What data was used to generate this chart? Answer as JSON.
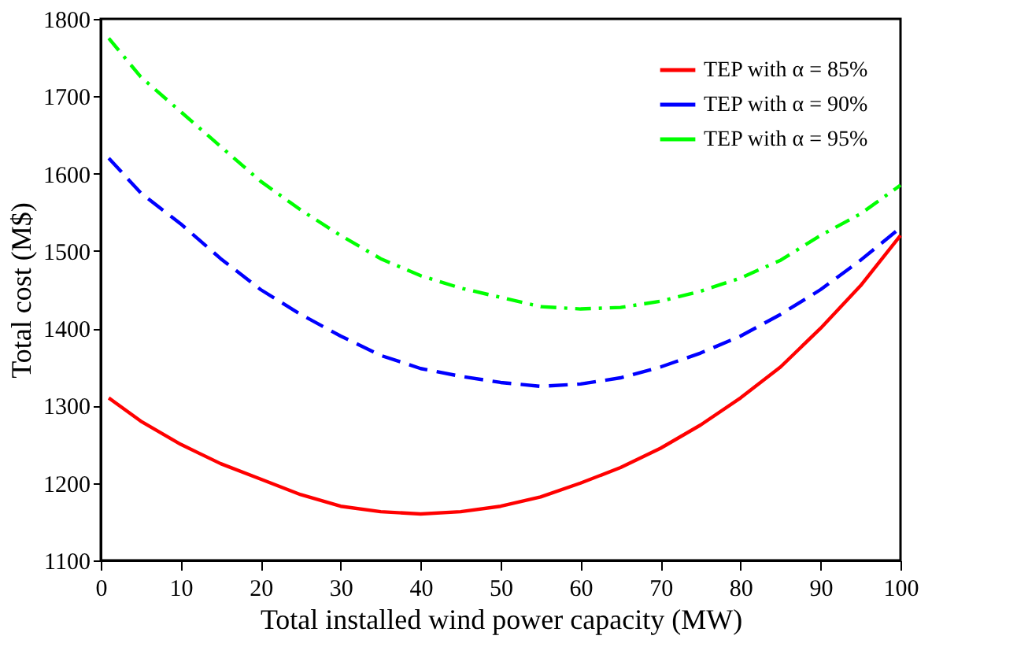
{
  "chart_data": {
    "type": "line",
    "xlabel": "Total installed wind power capacity (MW)",
    "ylabel": "Total cost (M$)",
    "x": [
      1,
      5,
      10,
      15,
      20,
      25,
      30,
      35,
      40,
      45,
      50,
      55,
      60,
      65,
      70,
      75,
      80,
      85,
      90,
      95,
      100
    ],
    "series": [
      {
        "name": "TEP with α = 85%",
        "color": "#ff0000",
        "line_style": "solid",
        "values": [
          1310,
          1280,
          1250,
          1225,
          1205,
          1185,
          1170,
          1163,
          1160,
          1163,
          1170,
          1182,
          1200,
          1220,
          1245,
          1275,
          1310,
          1350,
          1400,
          1455,
          1520
        ]
      },
      {
        "name": "TEP with α = 90%",
        "color": "#0000ff",
        "line_style": "dashed",
        "values": [
          1620,
          1575,
          1535,
          1490,
          1450,
          1418,
          1390,
          1365,
          1348,
          1338,
          1330,
          1325,
          1328,
          1336,
          1350,
          1368,
          1390,
          1418,
          1450,
          1488,
          1530
        ]
      },
      {
        "name": "TEP with α = 95%",
        "color": "#00ff00",
        "line_style": "dashdot",
        "values": [
          1775,
          1725,
          1680,
          1635,
          1590,
          1553,
          1520,
          1490,
          1468,
          1452,
          1440,
          1428,
          1425,
          1427,
          1435,
          1448,
          1465,
          1488,
          1520,
          1548,
          1585
        ]
      }
    ],
    "xlim": [
      0,
      100
    ],
    "xticks": [
      0,
      10,
      20,
      30,
      40,
      50,
      60,
      70,
      80,
      90,
      100
    ],
    "ylim": [
      1100,
      1800
    ],
    "yticks": [
      1100,
      1200,
      1300,
      1400,
      1500,
      1600,
      1700,
      1800
    ],
    "grid": false,
    "legend": "top right",
    "marker": "none"
  }
}
